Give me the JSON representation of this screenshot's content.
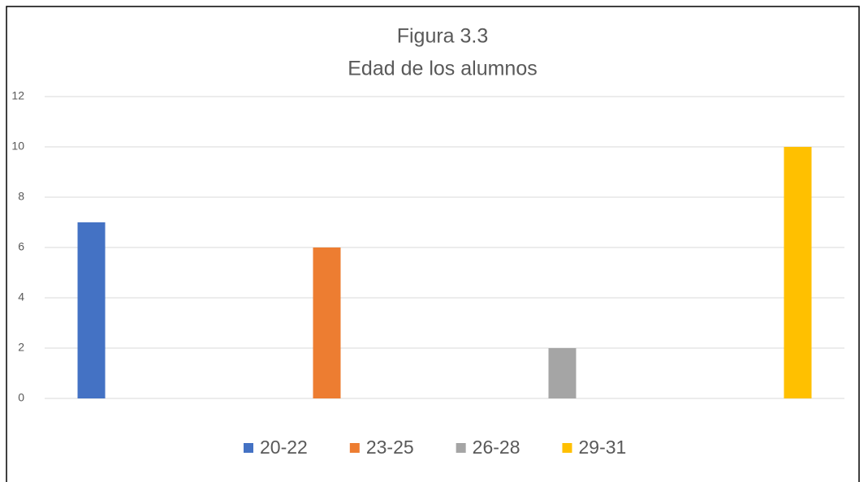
{
  "chart_data": {
    "type": "bar",
    "title": "Figura 3.3",
    "subtitle": "Edad de los alumnos",
    "categories": [
      null
    ],
    "series": [
      {
        "name": "20-22",
        "color": "#4472c4",
        "values": [
          7
        ]
      },
      {
        "name": "23-25",
        "color": "#ed7d31",
        "values": [
          6
        ]
      },
      {
        "name": "26-28",
        "color": "#a5a5a5",
        "values": [
          2
        ]
      },
      {
        "name": "29-31",
        "color": "#ffc000",
        "values": [
          10
        ]
      }
    ],
    "ylim": [
      0,
      12
    ],
    "yticks": [
      0,
      2,
      4,
      6,
      8,
      10,
      12
    ],
    "grid": true,
    "legend": "bottom"
  }
}
